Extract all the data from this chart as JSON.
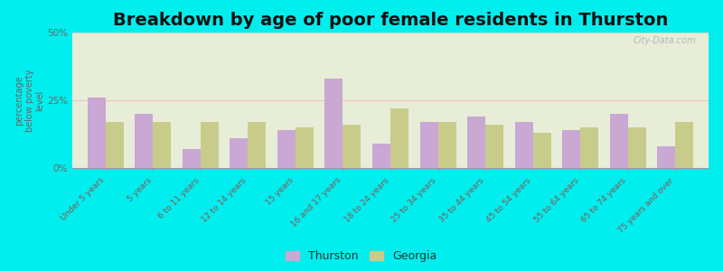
{
  "title": "Breakdown by age of poor female residents in Thurston",
  "categories": [
    "Under 5 years",
    "5 years",
    "6 to 11 years",
    "12 to 14 years",
    "15 years",
    "16 and 17 years",
    "18 to 24 years",
    "25 to 34 years",
    "35 to 44 years",
    "45 to 54 years",
    "55 to 64 years",
    "65 to 74 years",
    "75 years and over"
  ],
  "thurston": [
    26,
    20,
    7,
    11,
    14,
    33,
    9,
    17,
    19,
    17,
    14,
    20,
    8
  ],
  "georgia": [
    17,
    17,
    17,
    17,
    15,
    16,
    22,
    17,
    16,
    13,
    15,
    15,
    17
  ],
  "thurston_color": "#c9a8d4",
  "georgia_color": "#c8cc8a",
  "plot_bg": "#e8edd8",
  "bg_outer": "#00eeee",
  "ylabel": "percentage\nbelow poverty\nlevel",
  "ylim": [
    0,
    50
  ],
  "yticks": [
    0,
    25,
    50
  ],
  "ytick_labels": [
    "0%",
    "25%",
    "50%"
  ],
  "legend_thurston": "Thurston",
  "legend_georgia": "Georgia",
  "title_fontsize": 14,
  "tick_fontsize": 7.5,
  "bar_width": 0.38
}
